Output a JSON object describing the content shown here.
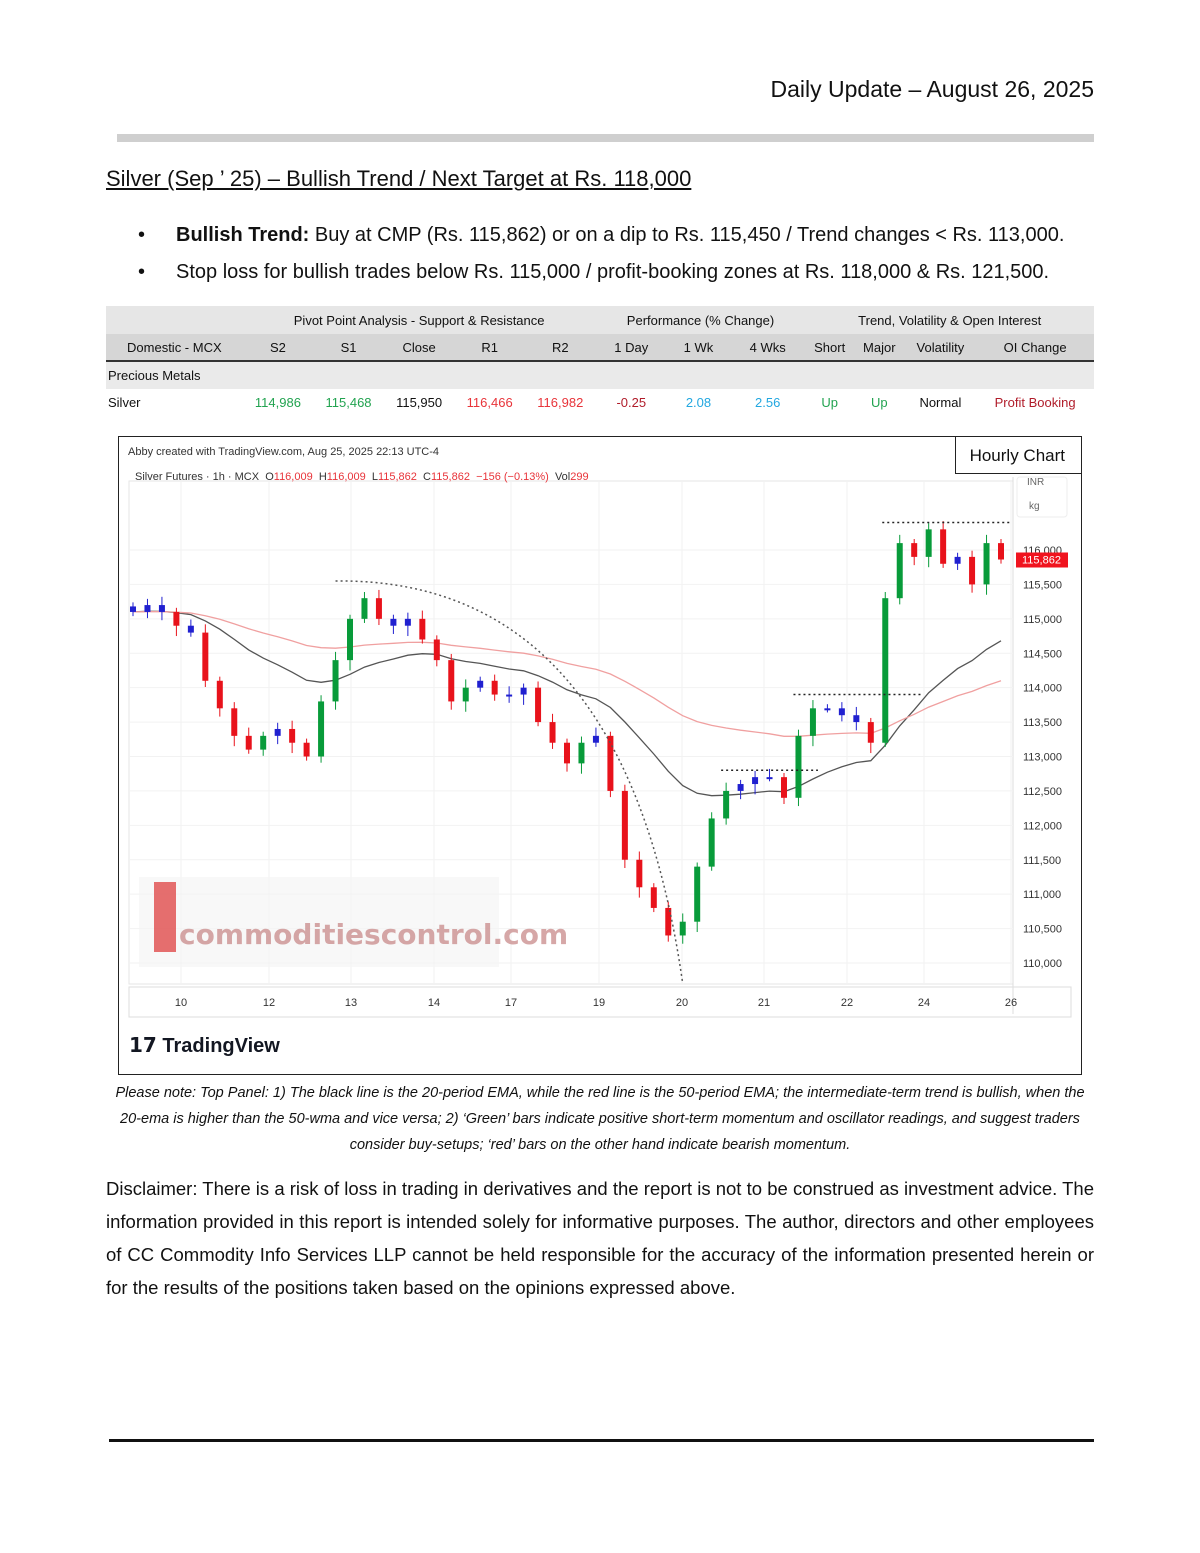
{
  "header": {
    "date": "Daily Update – August 26, 2025"
  },
  "title": "Silver (Sep ’ 25) – Bullish Trend / Next Target at Rs. 118,000",
  "bullets": [
    {
      "bold": "Bullish Trend:",
      "text": " Buy at CMP (Rs. 115,862) or on a dip to Rs. 115,450 / Trend changes < Rs. 113,000."
    },
    {
      "bold": "",
      "text": "Stop loss for bullish trades below Rs. 115,000 / profit-booking zones at Rs. 118,000 & Rs. 121,500."
    }
  ],
  "table": {
    "groups": [
      "Pivot Point Analysis - Support & Resistance",
      "Performance (% Change)",
      "Trend, Volatility & Open Interest"
    ],
    "headers": [
      "Domestic - MCX",
      "S2",
      "S1",
      "Close",
      "R1",
      "R2",
      "1 Day",
      "1 Wk",
      "4 Wks",
      "Short",
      "Major",
      "Volatility",
      "OI Change"
    ],
    "section": "Precious Metals",
    "rows": [
      {
        "cells": [
          "Silver",
          "114,986",
          "115,468",
          "115,950",
          "116,466",
          "116,982",
          "-0.25",
          "2.08",
          "2.56",
          "Up",
          "Up",
          "Normal",
          "Profit Booking"
        ]
      }
    ],
    "colors": {
      "support": "#22a350",
      "resistance": "#e8343a",
      "positive": "#22a7e0",
      "negative": "#b01c2a"
    }
  },
  "chart": {
    "badge": "Hourly Chart",
    "credit": "Abby created with TradingView.com, Aug 25, 2025 22:13 UTC-4",
    "symbol": "Silver Futures · 1h · MCX",
    "ohlc": {
      "O": "116,009",
      "H": "116,009",
      "L": "115,862",
      "C": "115,862",
      "chg": "−156 (−0.13%)",
      "vol": "299"
    },
    "unit1": "INR",
    "unit2": "kg",
    "last_price": "115,862",
    "watermark": "commoditiescontrol.com",
    "brand": "TradingView"
  },
  "chart_data": {
    "type": "candlestick",
    "x_ticks": [
      "10",
      "12",
      "13",
      "14",
      "17",
      "19",
      "20",
      "21",
      "22",
      "24",
      "26"
    ],
    "y_ticks": [
      "110,000",
      "110,500",
      "111,000",
      "111,500",
      "112,000",
      "112,500",
      "113,000",
      "113,500",
      "114,000",
      "114,500",
      "115,000",
      "115,500",
      "116,000"
    ],
    "ylim": [
      109900,
      116900
    ],
    "closes": [
      115100,
      115200,
      115100,
      114900,
      114800,
      114100,
      113700,
      113300,
      113100,
      113300,
      113400,
      113200,
      113000,
      113800,
      114400,
      115000,
      115300,
      115000,
      114900,
      115000,
      114700,
      114400,
      113800,
      114000,
      114100,
      113900,
      113900,
      114000,
      113500,
      113200,
      112900,
      113200,
      113300,
      112500,
      111500,
      111100,
      110800,
      110400,
      110600,
      111400,
      112100,
      112500,
      112600,
      112700,
      112700,
      112400,
      113300,
      113700,
      113700,
      113600,
      113500,
      113200,
      115300,
      116100,
      115900,
      116300,
      115800,
      115900,
      115500,
      116100,
      115862
    ],
    "series": [
      {
        "name": "20-period EMA",
        "color": "#555555"
      },
      {
        "name": "50-period EMA",
        "color": "#f0a0a0"
      }
    ],
    "colors": {
      "up": "#089b3a",
      "down": "#e8121b",
      "neutral": "#2020d0"
    },
    "levels": [
      116400,
      113900,
      112800
    ],
    "grid": true
  },
  "note": "Please note: Top Panel: 1) The black line is the 20-period EMA, while the red line is the 50-period EMA; the intermediate-term trend is bullish, when the 20-ema is higher than the 50-wma and vice versa; 2)   ‘Green’   bars indicate positive short-term momentum and oscillator readings, and suggest traders consider buy-setups;   ‘red’   bars on the other hand indicate bearish momentum.",
  "disclaimer": "Disclaimer: There is a risk of loss in trading in derivatives and the report is not to be construed as investment advice. The information provided in this report is intended solely for informative purposes. The author, directors and other employees of CC Commodity Info Services LLP cannot be held responsible for the accuracy of the information presented herein or for the results of the positions taken based on the opinions expressed above."
}
